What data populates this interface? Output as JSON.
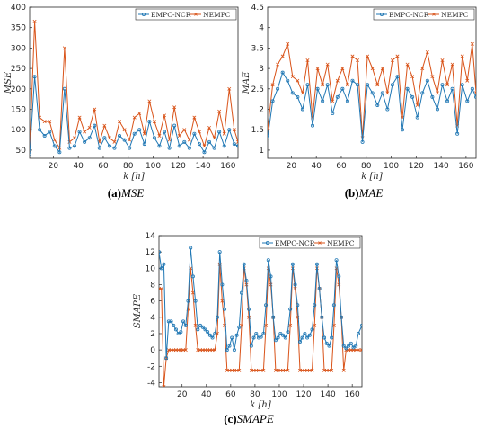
{
  "captions": [
    {
      "tag": "(a)",
      "metric": "MSE"
    },
    {
      "tag": "(b)",
      "metric": "MAE"
    },
    {
      "tag": "(c)",
      "metric": "SMAPE"
    }
  ],
  "colors": {
    "empc": "#1f77b4",
    "nempc": "#d95319"
  },
  "chart_data": [
    {
      "type": "line",
      "xlabel": "k [h]",
      "ylabel": "MSE",
      "xlim": [
        1,
        168
      ],
      "ylim": [
        30,
        400
      ],
      "xticks": [
        20,
        40,
        60,
        80,
        100,
        120,
        140,
        160
      ],
      "yticks": [
        50,
        100,
        150,
        200,
        250,
        300,
        350,
        400
      ],
      "legend": "top-right",
      "x": [
        1,
        5,
        9,
        13,
        17,
        21,
        25,
        29,
        33,
        37,
        41,
        45,
        49,
        53,
        57,
        61,
        65,
        69,
        73,
        77,
        81,
        85,
        89,
        93,
        97,
        101,
        105,
        109,
        113,
        117,
        121,
        125,
        129,
        133,
        137,
        141,
        145,
        149,
        153,
        157,
        161,
        165,
        168
      ],
      "series": [
        {
          "name": "EMPC-NCR",
          "values": [
            40,
            230,
            100,
            85,
            95,
            60,
            45,
            200,
            55,
            60,
            95,
            70,
            80,
            110,
            55,
            80,
            60,
            55,
            85,
            75,
            55,
            90,
            100,
            65,
            120,
            80,
            60,
            95,
            55,
            110,
            60,
            70,
            55,
            90,
            65,
            45,
            70,
            55,
            95,
            60,
            100,
            65,
            60
          ]
        },
        {
          "name": "NEMPC",
          "values": [
            45,
            365,
            130,
            120,
            120,
            75,
            55,
            300,
            70,
            80,
            130,
            95,
            105,
            150,
            70,
            110,
            80,
            70,
            120,
            100,
            75,
            130,
            140,
            90,
            170,
            120,
            85,
            135,
            75,
            155,
            85,
            100,
            75,
            130,
            95,
            60,
            105,
            80,
            145,
            90,
            200,
            100,
            70
          ]
        }
      ]
    },
    {
      "type": "line",
      "xlabel": "k [h]",
      "ylabel": "MAE",
      "xlim": [
        1,
        168
      ],
      "ylim": [
        0.8,
        4.5
      ],
      "xticks": [
        20,
        40,
        60,
        80,
        100,
        120,
        140,
        160
      ],
      "yticks": [
        1,
        1.5,
        2,
        2.5,
        3,
        3.5,
        4,
        4.5
      ],
      "legend": "top-right",
      "x": [
        1,
        5,
        9,
        13,
        17,
        21,
        25,
        29,
        33,
        37,
        41,
        45,
        49,
        53,
        57,
        61,
        65,
        69,
        73,
        77,
        81,
        85,
        89,
        93,
        97,
        101,
        105,
        109,
        113,
        117,
        121,
        125,
        129,
        133,
        137,
        141,
        145,
        149,
        153,
        157,
        161,
        165,
        168
      ],
      "series": [
        {
          "name": "EMPC-NCR",
          "values": [
            1.3,
            2.2,
            2.5,
            2.9,
            2.7,
            2.4,
            2.3,
            2.0,
            2.6,
            1.6,
            2.5,
            2.2,
            2.6,
            1.9,
            2.3,
            2.5,
            2.2,
            2.7,
            2.6,
            1.2,
            2.6,
            2.4,
            2.1,
            2.4,
            2.0,
            2.6,
            2.8,
            1.5,
            2.5,
            2.3,
            1.8,
            2.4,
            2.7,
            2.3,
            2.0,
            2.6,
            2.2,
            2.5,
            1.4,
            2.6,
            2.2,
            2.5,
            2.3
          ]
        },
        {
          "name": "NEMPC",
          "values": [
            1.5,
            2.6,
            3.1,
            3.3,
            3.6,
            2.8,
            2.7,
            2.4,
            3.2,
            1.8,
            3.0,
            2.6,
            3.1,
            2.2,
            2.7,
            3.0,
            2.6,
            3.3,
            3.2,
            1.3,
            3.3,
            3.0,
            2.6,
            3.0,
            2.4,
            3.2,
            3.3,
            1.8,
            3.1,
            2.8,
            2.1,
            3.0,
            3.4,
            2.8,
            2.4,
            3.2,
            2.6,
            3.1,
            1.6,
            3.3,
            2.7,
            3.6,
            2.4
          ]
        }
      ]
    },
    {
      "type": "line",
      "xlabel": "k [h]",
      "ylabel": "SMAPE",
      "xlim": [
        1,
        168
      ],
      "ylim": [
        -4.5,
        14
      ],
      "xticks": [
        20,
        40,
        60,
        80,
        100,
        120,
        140,
        160
      ],
      "yticks": [
        -4,
        -2,
        0,
        2,
        4,
        6,
        8,
        10,
        12,
        14
      ],
      "legend": "top-right",
      "x": [
        1,
        3,
        5,
        7,
        9,
        11,
        13,
        15,
        17,
        19,
        21,
        23,
        25,
        27,
        29,
        31,
        33,
        35,
        37,
        39,
        41,
        43,
        45,
        47,
        49,
        51,
        53,
        55,
        57,
        59,
        61,
        63,
        65,
        67,
        69,
        71,
        73,
        75,
        77,
        79,
        81,
        83,
        85,
        87,
        89,
        91,
        93,
        95,
        97,
        99,
        101,
        103,
        105,
        107,
        109,
        111,
        113,
        115,
        117,
        119,
        121,
        123,
        125,
        127,
        129,
        131,
        133,
        135,
        137,
        139,
        141,
        143,
        145,
        147,
        149,
        151,
        153,
        155,
        157,
        159,
        161,
        163,
        165,
        168
      ],
      "series": [
        {
          "name": "EMPC-NCR",
          "values": [
            12,
            10,
            10.5,
            -1,
            3.5,
            3.5,
            3,
            2.5,
            2,
            2.2,
            3.5,
            3,
            6,
            12.5,
            9,
            6,
            2.5,
            3,
            2.8,
            2.5,
            2.2,
            1.8,
            1.5,
            2,
            4,
            12,
            8,
            5,
            0,
            0.5,
            1.5,
            0,
            1.8,
            2.8,
            7,
            10.5,
            8.5,
            5,
            0.5,
            1.5,
            2,
            1.5,
            1.6,
            2,
            5.5,
            11,
            9,
            4,
            1.2,
            1.5,
            2,
            1.8,
            1.5,
            2.2,
            5,
            10.5,
            8,
            5.5,
            1,
            1.5,
            2,
            1.5,
            1.8,
            2.5,
            5.5,
            10.5,
            7.5,
            4,
            1.5,
            0.8,
            0.5,
            1.5,
            5.5,
            11,
            9,
            4,
            0.5,
            0.2,
            0.5,
            0.8,
            0.3,
            0.5,
            2,
            3
          ]
        },
        {
          "name": "NEMPC",
          "values": [
            7.5,
            7.5,
            -4.5,
            -1,
            0,
            0,
            0,
            0,
            0,
            0,
            0,
            0,
            5,
            10,
            7,
            3,
            0,
            0,
            0,
            0,
            0,
            0,
            0,
            0,
            2,
            10.5,
            6,
            3,
            -2.5,
            -2.5,
            -2.5,
            -2.5,
            -2.5,
            -2.5,
            3,
            10,
            8,
            4,
            -2.5,
            -2.5,
            -2.5,
            -2.5,
            -2.5,
            -2.5,
            3,
            10,
            8,
            4,
            -2.5,
            -2.5,
            -2.5,
            -2.5,
            -2.5,
            -2.5,
            3,
            10,
            7.5,
            4,
            -2.5,
            -2.5,
            -2.5,
            -2.5,
            -2.5,
            -2.5,
            3,
            10,
            7.5,
            4,
            -2.5,
            -2.5,
            -2.5,
            -2.5,
            3,
            10,
            8,
            4,
            -2.5,
            0,
            0,
            0,
            0,
            0,
            0,
            0
          ]
        }
      ]
    }
  ]
}
